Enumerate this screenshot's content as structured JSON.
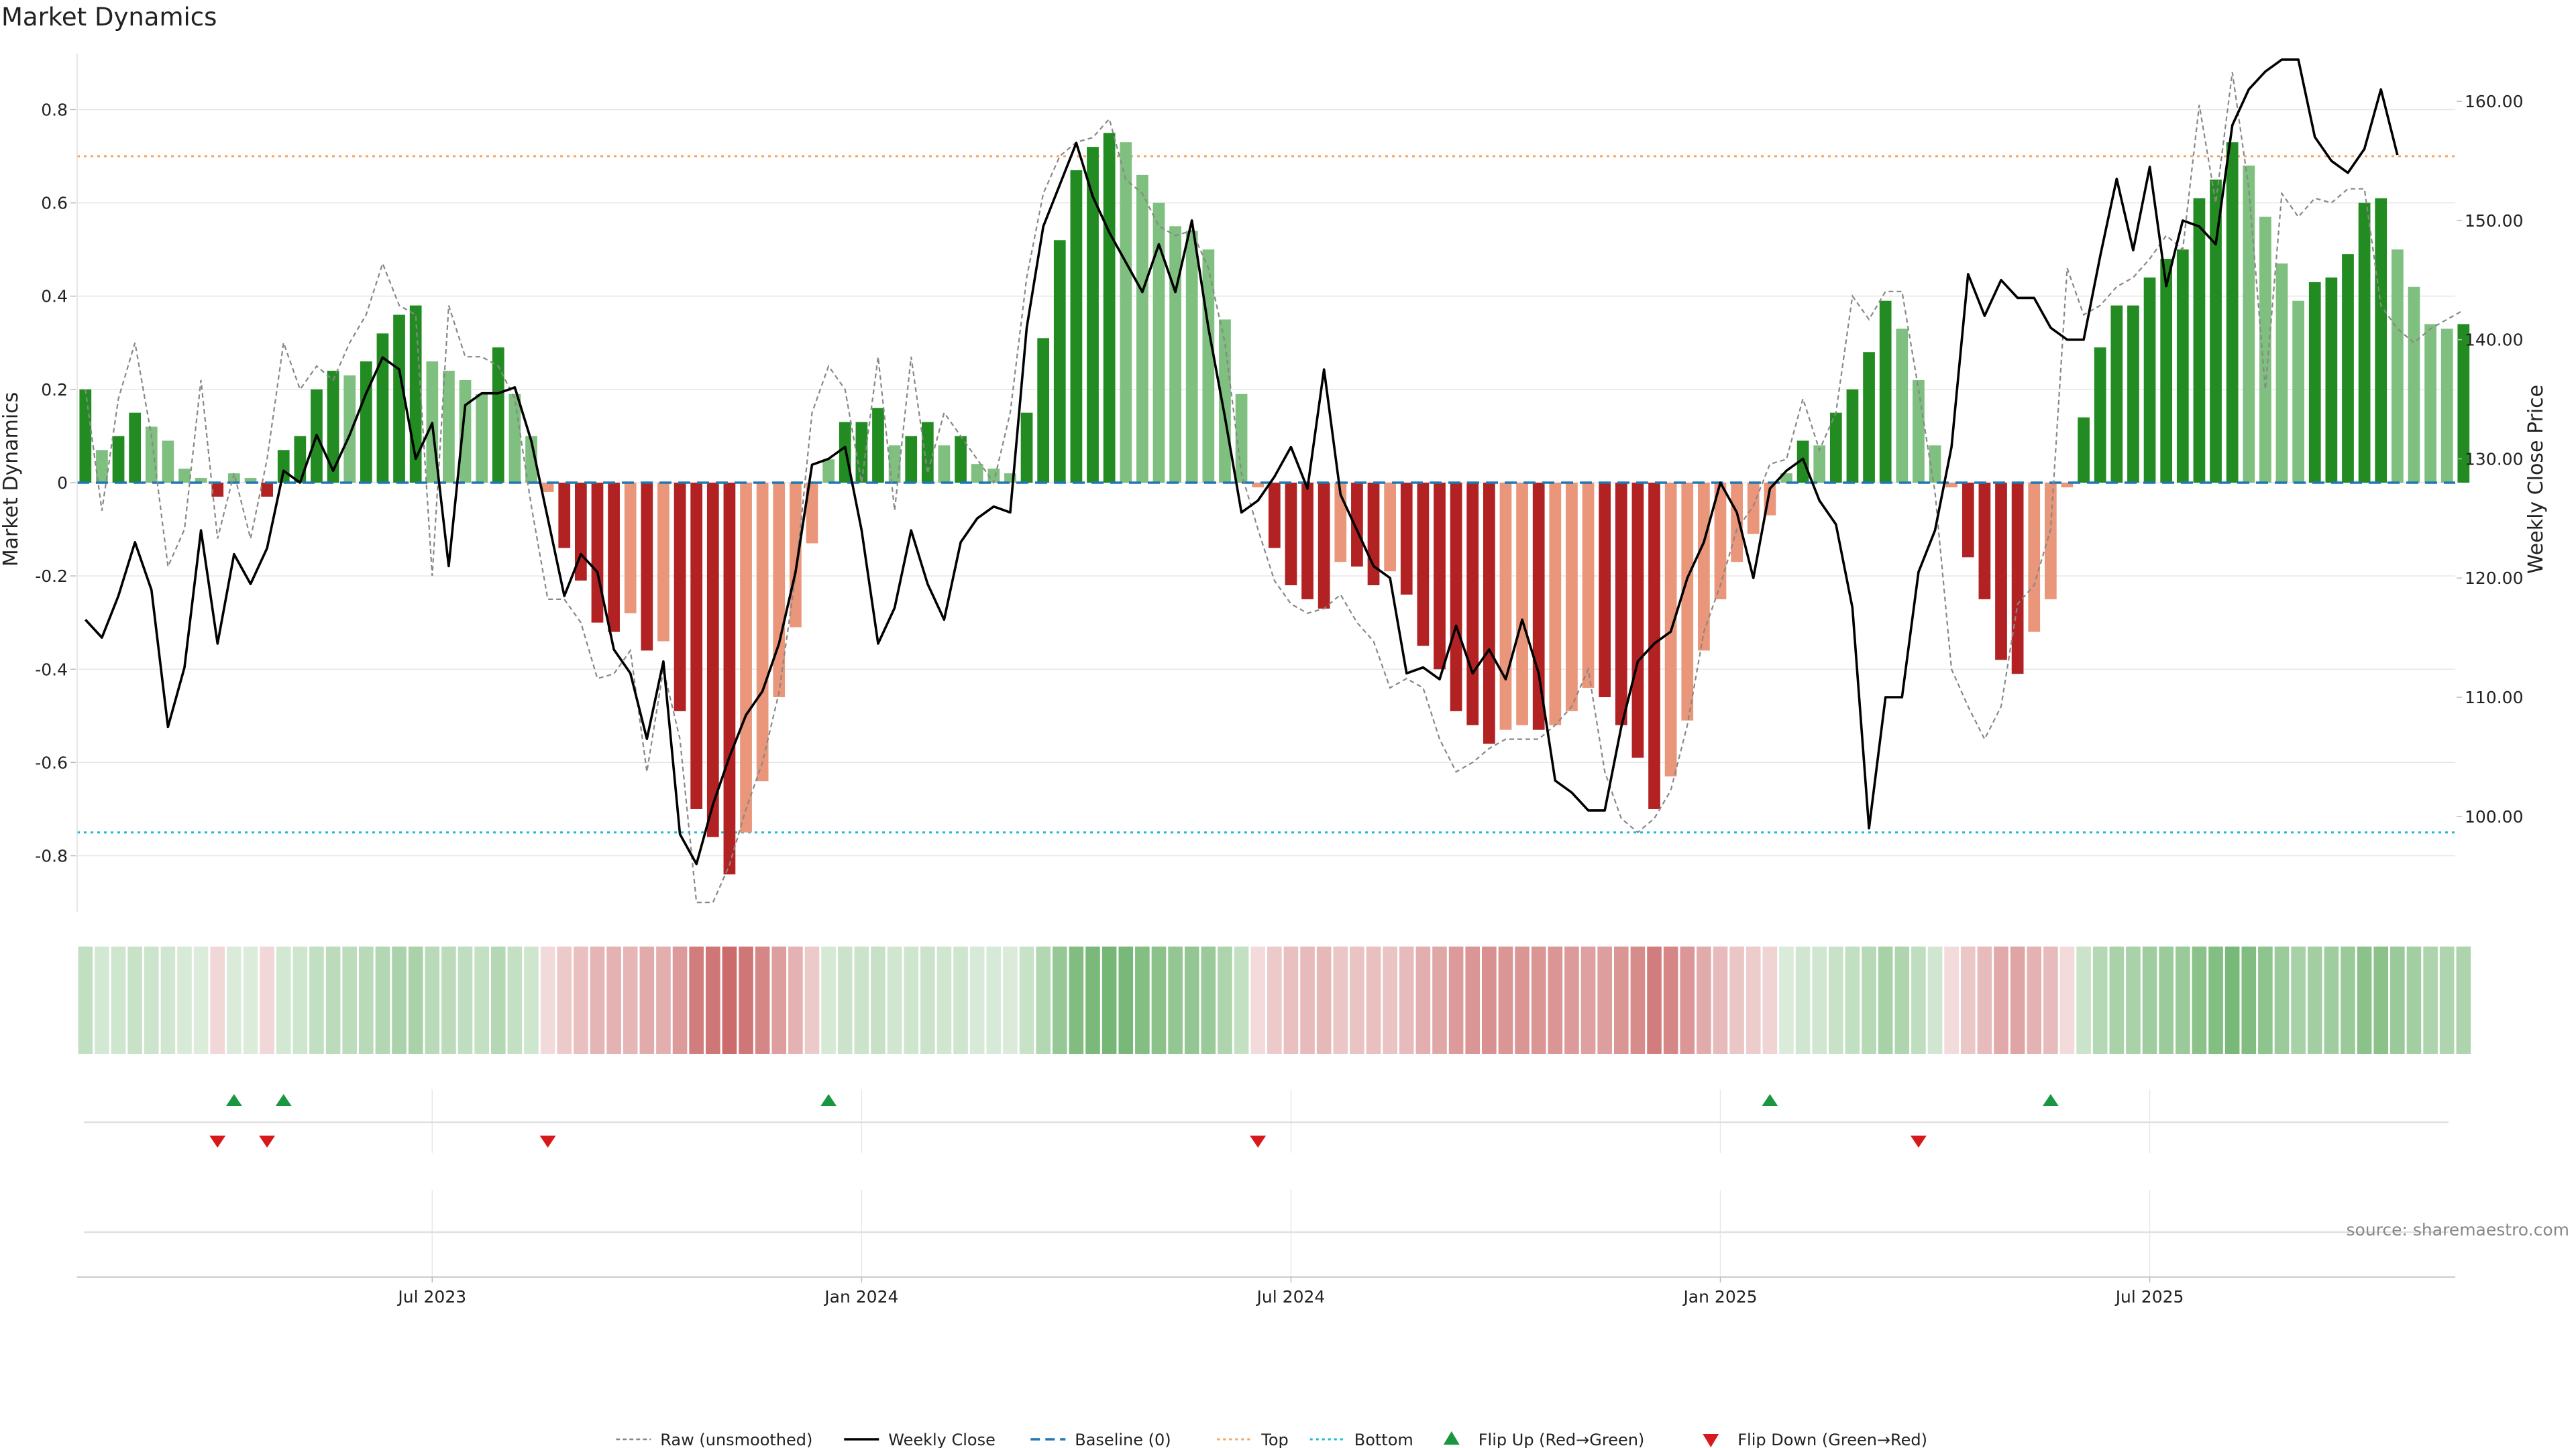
{
  "title": "Market Dynamics",
  "source": "source: sharemaestro.com",
  "chart_data": {
    "type": "bar",
    "title": "Market Dynamics",
    "ylabel": "Market Dynamics",
    "y2label": "Weekly Close Price",
    "ylim": [
      -0.92,
      0.92
    ],
    "y2lim": [
      92,
      164
    ],
    "yticks": [
      "0.8",
      "0.6",
      "0.4",
      "0.2",
      "0",
      "-0.2",
      "-0.4",
      "-0.6",
      "-0.8"
    ],
    "y2ticks": [
      "160.00",
      "150.00",
      "140.00",
      "130.00",
      "120.00",
      "110.00",
      "100.00"
    ],
    "xticks": [
      {
        "label": "Jul 2023",
        "week": 21
      },
      {
        "label": "Jan 2024",
        "week": 47
      },
      {
        "label": "Jul 2024",
        "week": 73
      },
      {
        "label": "Jan 2025",
        "week": 99
      },
      {
        "label": "Jul 2025",
        "week": 125
      }
    ],
    "start_week": "2023-02-13",
    "weeks": 144,
    "baseline": 0,
    "top_level": 0.7,
    "bottom_level": -0.75,
    "grid": true,
    "legend_position": "bottom-center",
    "colors": {
      "up_strong": "#228B22",
      "up_weak": "#7FBF7F",
      "down_strong": "#B22222",
      "down_weak": "#E9967A",
      "raw_line": "#888888",
      "close_line": "#000000",
      "baseline": "#1f77b4",
      "top": "#F4A460",
      "bottom": "#17BECF",
      "flip_up": "#1a9641",
      "flip_down": "#d7191c"
    },
    "dynamics": [
      0.2,
      0.07,
      0.1,
      0.15,
      0.12,
      0.09,
      0.03,
      0.01,
      -0.03,
      0.02,
      0.01,
      -0.03,
      0.07,
      0.1,
      0.2,
      0.24,
      0.23,
      0.26,
      0.32,
      0.36,
      0.38,
      0.26,
      0.24,
      0.22,
      0.19,
      0.29,
      0.19,
      0.1,
      -0.02,
      -0.14,
      -0.21,
      -0.3,
      -0.32,
      -0.28,
      -0.36,
      -0.34,
      -0.49,
      -0.7,
      -0.76,
      -0.84,
      -0.75,
      -0.64,
      -0.46,
      -0.31,
      -0.13,
      0.05,
      0.13,
      0.13,
      0.16,
      0.08,
      0.1,
      0.13,
      0.08,
      0.1,
      0.04,
      0.03,
      0.02,
      0.15,
      0.31,
      0.52,
      0.67,
      0.72,
      0.75,
      0.73,
      0.66,
      0.6,
      0.55,
      0.54,
      0.5,
      0.35,
      0.19,
      -0.01,
      -0.14,
      -0.22,
      -0.25,
      -0.27,
      -0.17,
      -0.18,
      -0.22,
      -0.19,
      -0.24,
      -0.35,
      -0.4,
      -0.49,
      -0.52,
      -0.56,
      -0.53,
      -0.52,
      -0.53,
      -0.52,
      -0.49,
      -0.44,
      -0.46,
      -0.52,
      -0.59,
      -0.7,
      -0.63,
      -0.51,
      -0.36,
      -0.25,
      -0.17,
      -0.11,
      -0.07,
      0.02,
      0.09,
      0.08,
      0.15,
      0.2,
      0.28,
      0.39,
      0.33,
      0.22,
      0.08,
      -0.01,
      -0.16,
      -0.25,
      -0.38,
      -0.41,
      -0.32,
      -0.25,
      -0.01,
      0.14,
      0.29,
      0.38,
      0.38,
      0.44,
      0.48,
      0.5,
      0.61,
      0.65,
      0.73,
      0.68,
      0.57,
      0.47,
      0.39,
      0.43,
      0.44,
      0.49,
      0.6,
      0.61,
      0.5,
      0.42,
      0.34,
      0.33,
      0.34
    ],
    "raw": [
      0.2,
      -0.06,
      0.18,
      0.3,
      0.1,
      -0.18,
      -0.1,
      0.22,
      -0.12,
      0.02,
      -0.12,
      0.05,
      0.3,
      0.2,
      0.25,
      0.22,
      0.3,
      0.36,
      0.47,
      0.38,
      0.36,
      -0.2,
      0.38,
      0.27,
      0.27,
      0.25,
      0.18,
      -0.05,
      -0.25,
      -0.25,
      -0.3,
      -0.42,
      -0.41,
      -0.36,
      -0.62,
      -0.4,
      -0.55,
      -0.9,
      -0.9,
      -0.82,
      -0.7,
      -0.6,
      -0.45,
      -0.2,
      0.15,
      0.25,
      0.2,
      0.0,
      0.27,
      -0.06,
      0.27,
      0.02,
      0.15,
      0.1,
      0.05,
      0.0,
      0.15,
      0.44,
      0.62,
      0.7,
      0.73,
      0.74,
      0.78,
      0.65,
      0.62,
      0.55,
      0.53,
      0.54,
      0.46,
      0.3,
      0.02,
      -0.1,
      -0.21,
      -0.26,
      -0.28,
      -0.27,
      -0.24,
      -0.3,
      -0.34,
      -0.44,
      -0.42,
      -0.44,
      -0.55,
      -0.62,
      -0.6,
      -0.57,
      -0.55,
      -0.55,
      -0.55,
      -0.52,
      -0.48,
      -0.4,
      -0.62,
      -0.72,
      -0.75,
      -0.72,
      -0.66,
      -0.52,
      -0.32,
      -0.22,
      -0.1,
      -0.05,
      0.04,
      0.05,
      0.18,
      0.07,
      0.15,
      0.4,
      0.35,
      0.41,
      0.41,
      0.2,
      -0.02,
      -0.4,
      -0.48,
      -0.55,
      -0.48,
      -0.26,
      -0.22,
      -0.1,
      0.46,
      0.36,
      0.38,
      0.42,
      0.44,
      0.48,
      0.53,
      0.5,
      0.81,
      0.6,
      0.88,
      0.63,
      0.2,
      0.62,
      0.57,
      0.61,
      0.6,
      0.63,
      0.63,
      0.38,
      0.33,
      0.3,
      0.33,
      0.35,
      0.37
    ],
    "close": [
      116.5,
      115.0,
      118.5,
      123.0,
      119.0,
      107.5,
      112.5,
      124.0,
      114.5,
      122.0,
      119.5,
      122.5,
      129.0,
      128.0,
      132.0,
      129.0,
      132.0,
      135.5,
      138.5,
      137.5,
      130.0,
      133.0,
      121.0,
      134.5,
      135.5,
      135.5,
      136.0,
      131.5,
      125.0,
      118.5,
      122.0,
      120.5,
      114.0,
      112.0,
      106.5,
      113.0,
      98.5,
      96.0,
      101.0,
      105.0,
      108.5,
      110.5,
      114.5,
      120.5,
      129.5,
      130.0,
      131.0,
      124.0,
      114.5,
      117.5,
      124.0,
      119.5,
      116.5,
      123.0,
      125.0,
      126.0,
      125.5,
      141.0,
      149.5,
      153.0,
      156.5,
      152.0,
      149.0,
      146.5,
      144.0,
      148.0,
      144.0,
      150.0,
      141.0,
      133.5,
      125.5,
      126.5,
      128.5,
      131.0,
      127.5,
      137.5,
      127.0,
      124.0,
      121.0,
      120.0,
      112.0,
      112.5,
      111.5,
      116.0,
      112.0,
      114.0,
      111.5,
      116.5,
      112.0,
      103.0,
      102.0,
      100.5,
      100.5,
      107.5,
      113.0,
      114.5,
      115.5,
      120.0,
      123.0,
      128.0,
      125.5,
      120.0,
      127.5,
      129.0,
      130.0,
      126.5,
      124.5,
      117.5,
      99.0,
      110.0,
      110.0,
      120.5,
      124.0,
      131.0,
      145.5,
      142.0,
      145.0,
      143.5,
      143.5,
      141.0,
      140.0,
      140.0,
      147.0,
      153.5,
      147.5,
      154.5,
      144.5,
      150.0,
      149.5,
      148.0,
      158.0,
      161.0,
      162.5,
      163.5,
      163.5,
      157.0,
      155.0,
      154.0,
      156.0,
      161.0,
      155.5
    ],
    "flips": [
      {
        "week": 8,
        "dir": "down"
      },
      {
        "week": 9,
        "dir": "up"
      },
      {
        "week": 11,
        "dir": "down"
      },
      {
        "week": 12,
        "dir": "up"
      },
      {
        "week": 28,
        "dir": "down"
      },
      {
        "week": 45,
        "dir": "up"
      },
      {
        "week": 71,
        "dir": "down"
      },
      {
        "week": 102,
        "dir": "up"
      },
      {
        "week": 111,
        "dir": "down"
      },
      {
        "week": 119,
        "dir": "up"
      }
    ],
    "legend": [
      {
        "label": "Raw (unsmoothed)",
        "style": "raw"
      },
      {
        "label": "Weekly Close",
        "style": "close"
      },
      {
        "label": "Baseline (0)",
        "style": "baseline"
      },
      {
        "label": "Top",
        "style": "top"
      },
      {
        "label": "Bottom",
        "style": "bottom"
      },
      {
        "label": "Flip Up (Red→Green)",
        "style": "flipup"
      },
      {
        "label": "Flip Down (Green→Red)",
        "style": "flipdown"
      }
    ]
  }
}
